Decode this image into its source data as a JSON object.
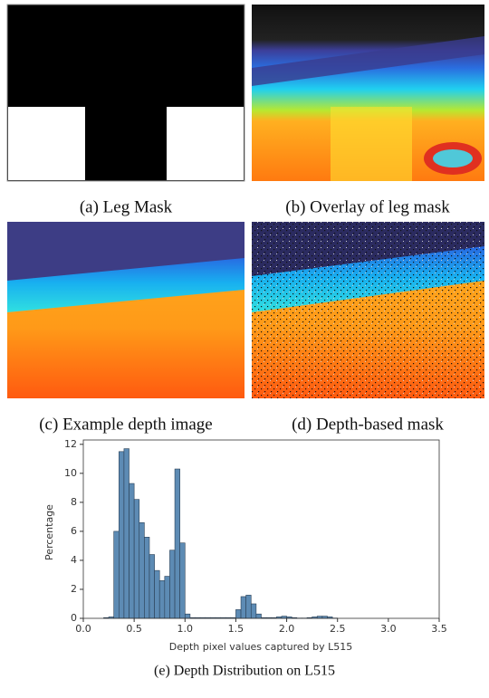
{
  "panels": [
    {
      "caption": "(a) Leg Mask"
    },
    {
      "caption": "(b) Overlay of leg mask"
    },
    {
      "caption": "(c) Example depth image"
    },
    {
      "caption": "(d) Depth-based mask"
    }
  ],
  "chart_data": {
    "type": "histogram",
    "caption": "(e) Depth Distribution on L515",
    "xlabel": "Depth pixel values captured by L515",
    "ylabel": "Percentage",
    "bins": [
      0.2,
      0.25,
      0.3,
      0.35,
      0.4,
      0.45,
      0.5,
      0.55,
      0.6,
      0.65,
      0.7,
      0.75,
      0.8,
      0.85,
      0.9,
      0.95,
      1.0,
      1.05,
      1.1,
      1.15,
      1.2,
      1.25,
      1.3,
      1.35,
      1.4,
      1.45,
      1.5,
      1.55,
      1.6,
      1.65,
      1.7,
      1.75,
      1.8,
      1.85,
      1.9,
      1.95,
      2.0,
      2.05,
      2.1,
      2.15,
      2.2,
      2.25,
      2.3,
      2.35,
      2.4,
      2.45,
      2.5
    ],
    "values": [
      0.05,
      0.1,
      6.0,
      11.5,
      11.7,
      9.3,
      8.2,
      6.6,
      5.6,
      4.4,
      3.3,
      2.6,
      2.9,
      4.7,
      10.3,
      5.2,
      0.3,
      0.05,
      0.05,
      0.05,
      0.05,
      0.05,
      0.05,
      0.05,
      0.05,
      0.05,
      0.6,
      1.5,
      1.6,
      1.0,
      0.3,
      0.05,
      0.05,
      0.05,
      0.1,
      0.15,
      0.1,
      0.05,
      0.02,
      0.02,
      0.05,
      0.1,
      0.15,
      0.15,
      0.1,
      0.02
    ],
    "color": "#5d8bb4",
    "edgecolor": "#2a3f55",
    "xlim": [
      0,
      3.5
    ],
    "ylim": [
      0,
      12.3
    ],
    "xticks": [
      {
        "value": 0,
        "label": "0.0"
      },
      0.5,
      {
        "value": 1,
        "label": "1.0"
      },
      1.5,
      {
        "value": 2,
        "label": "2.0"
      },
      2.5,
      {
        "value": 3,
        "label": "3.0"
      },
      3.5
    ],
    "yticks": [
      0,
      2,
      4,
      6,
      8,
      10,
      12
    ]
  }
}
